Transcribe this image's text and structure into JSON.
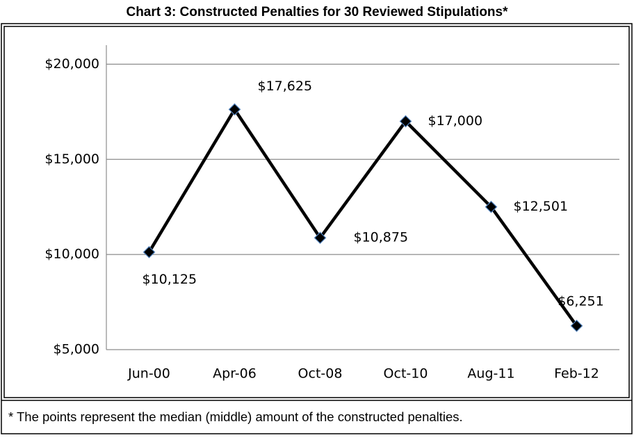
{
  "chart_data": {
    "type": "line",
    "title": "Chart 3:  Constructed Penalties for 30 Reviewed Stipulations*",
    "categories": [
      "Jun-00",
      "Apr-06",
      "Oct-08",
      "Oct-10",
      "Aug-11",
      "Feb-12"
    ],
    "series": [
      {
        "color": "#000000",
        "values": [
          10125,
          17625,
          10875,
          17000,
          12501,
          6251
        ],
        "value_labels": [
          "$10,125",
          "$17,625",
          "$10,875",
          "$17,000",
          "$12,501",
          "$6,251"
        ]
      }
    ],
    "ylim": [
      5000,
      21000
    ],
    "yticks": [
      {
        "value": 5000,
        "label": "$5,000"
      },
      {
        "value": 10000,
        "label": "$10,000"
      },
      {
        "value": 15000,
        "label": "$15,000"
      },
      {
        "value": 20000,
        "label": "$20,000"
      }
    ],
    "grid": true,
    "note": "* The points represent the median (middle) amount of the constructed penalties."
  }
}
